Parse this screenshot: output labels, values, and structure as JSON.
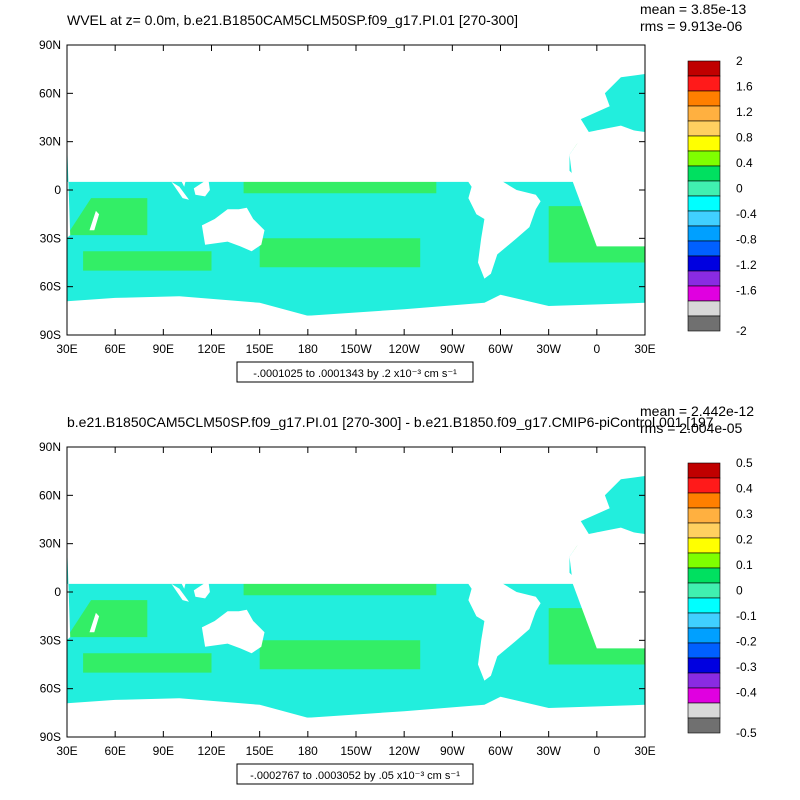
{
  "chart_data": [
    {
      "type": "heatmap",
      "title": "WVEL at z=   0.0m, b.e21.B1850CAM5CLM50SP.f09_g17.PI.01 [270-300]",
      "stats": {
        "mean": "mean = 3.85e-13",
        "rms": "rms = 9.913e-06"
      },
      "x_ticks": [
        "30E",
        "60E",
        "90E",
        "120E",
        "150E",
        "180",
        "150W",
        "120W",
        "90W",
        "60W",
        "30W",
        "0",
        "30E"
      ],
      "y_ticks": [
        "90N",
        "60N",
        "30N",
        "0",
        "30S",
        "60S",
        "90S"
      ],
      "colorbar_labels": [
        "2",
        "1.6",
        "1.2",
        "0.8",
        "0.4",
        "0",
        "-0.4",
        "-0.8",
        "-1.2",
        "-1.6",
        "-2"
      ],
      "colorbar_colors": [
        "#c00000",
        "#ff1a1a",
        "#ff7f00",
        "#ffb040",
        "#ffd060",
        "#ffff00",
        "#7fff00",
        "#00e060",
        "#40f0b0",
        "#00ffff",
        "#40d0ff",
        "#00a0ff",
        "#0060ff",
        "#0000e0",
        "#8a2be2",
        "#e000e0",
        "#d8d8d8",
        "#707070"
      ],
      "range_label": "-.0001025 to .0001343 by .2 x10⁻³ cm s⁻¹",
      "dominant_colors": {
        "ocean_positive": "#33ee66",
        "ocean_negative": "#22eedd",
        "land": "#ffffff"
      }
    },
    {
      "type": "heatmap",
      "title": "b.e21.B1850CAM5CLM50SP.f09_g17.PI.01 [270-300] - b.e21.B1850.f09_g17.CMIP6-piControl.001 [197",
      "stats": {
        "mean": "mean = 2.442e-12",
        "rms": "rms = 2.004e-05"
      },
      "x_ticks": [
        "30E",
        "60E",
        "90E",
        "120E",
        "150E",
        "180",
        "150W",
        "120W",
        "90W",
        "60W",
        "30W",
        "0",
        "30E"
      ],
      "y_ticks": [
        "90N",
        "60N",
        "30N",
        "0",
        "30S",
        "60S",
        "90S"
      ],
      "colorbar_labels": [
        "0.5",
        "0.4",
        "0.3",
        "0.2",
        "0.1",
        "0",
        "-0.1",
        "-0.2",
        "-0.3",
        "-0.4",
        "-0.5"
      ],
      "colorbar_colors": [
        "#c00000",
        "#ff1a1a",
        "#ff7f00",
        "#ffb040",
        "#ffd060",
        "#ffff00",
        "#7fff00",
        "#00e060",
        "#40f0b0",
        "#00ffff",
        "#40d0ff",
        "#00a0ff",
        "#0060ff",
        "#0000e0",
        "#8a2be2",
        "#e000e0",
        "#d8d8d8",
        "#707070"
      ],
      "range_label": "-.0002767 to .0003052 by .05 x10⁻³ cm s⁻¹",
      "dominant_colors": {
        "ocean_positive": "#33ee66",
        "ocean_negative": "#22eedd",
        "land": "#ffffff"
      }
    }
  ]
}
